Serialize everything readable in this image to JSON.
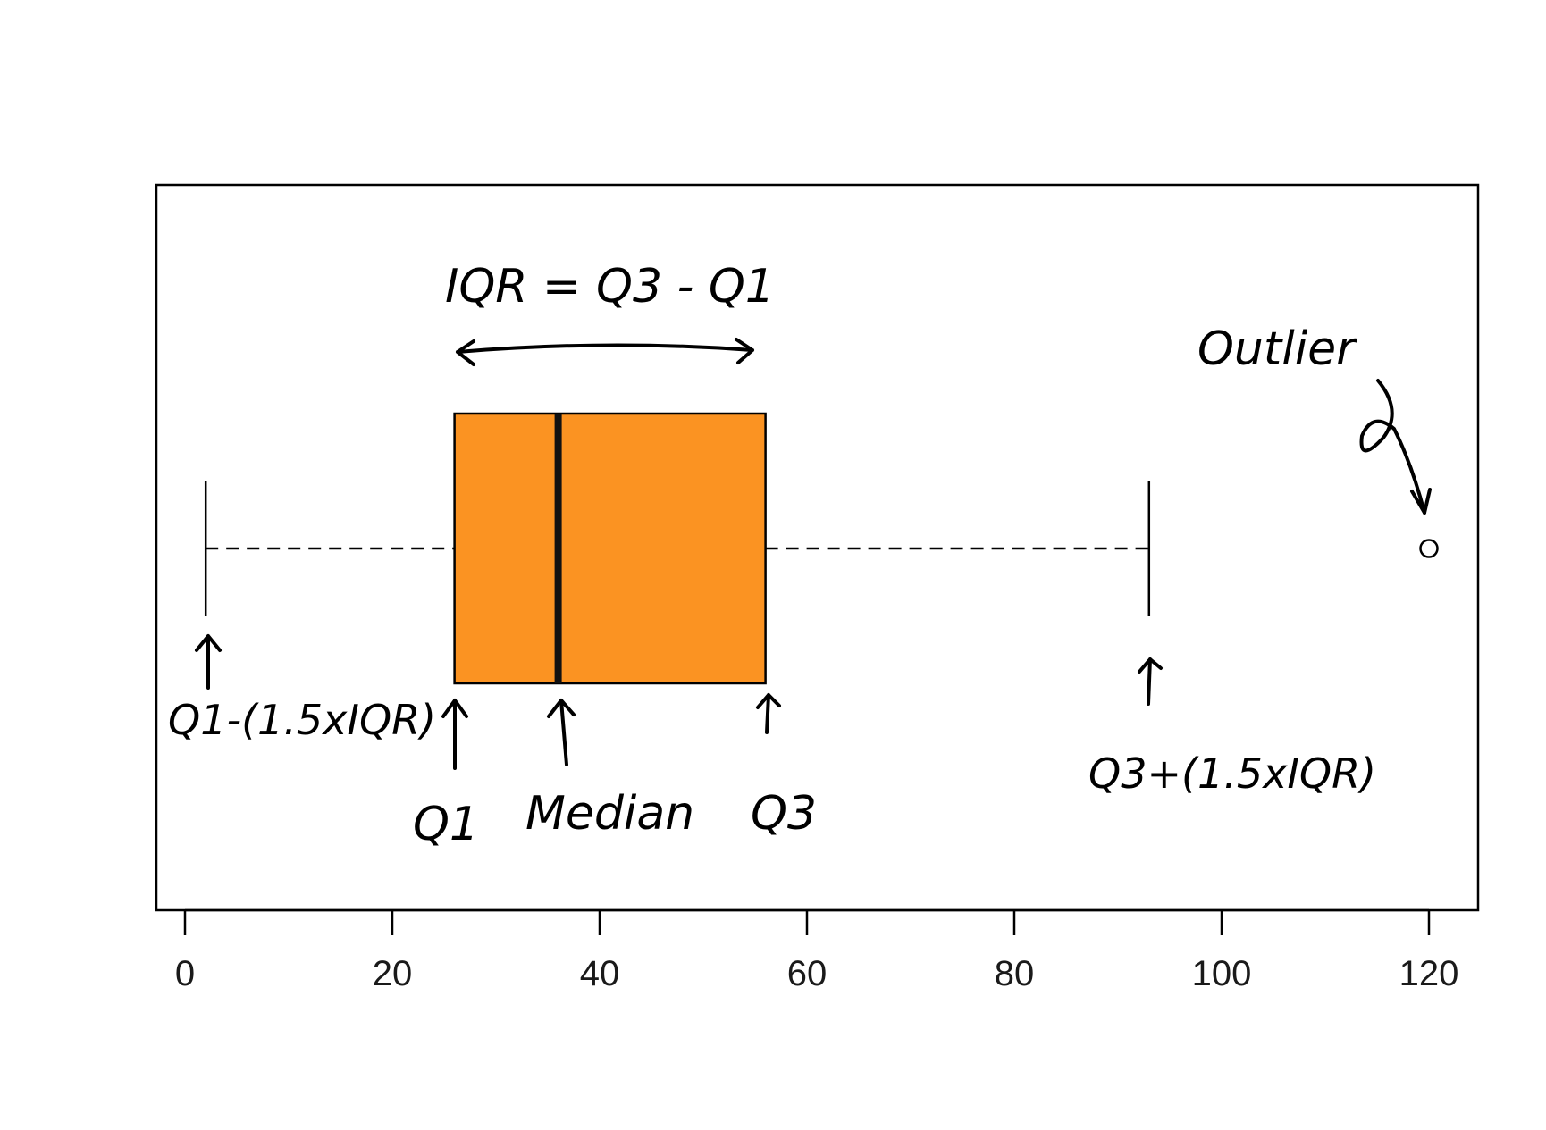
{
  "chart_data": {
    "type": "boxplot",
    "orientation": "horizontal",
    "xlim": [
      0,
      120
    ],
    "x_ticks": [
      0,
      20,
      40,
      60,
      80,
      100,
      120
    ],
    "tick_labels": [
      "0",
      "20",
      "40",
      "60",
      "80",
      "100",
      "120"
    ],
    "stats": {
      "lower_whisker": 2,
      "q1": 26,
      "median": 36,
      "q3": 56,
      "upper_whisker": 93,
      "outliers": [
        120
      ]
    },
    "annotations": {
      "iqr": "IQR = Q3 - Q1",
      "outlier": "Outlier",
      "lower_fence": "Q1-(1.5xIQR)",
      "q1": "Q1",
      "median": "Median",
      "q3": "Q3",
      "upper_fence": "Q3+(1.5xIQR)"
    },
    "colors": {
      "box_fill": "#fb9322",
      "line": "#000000"
    },
    "grid": false
  }
}
